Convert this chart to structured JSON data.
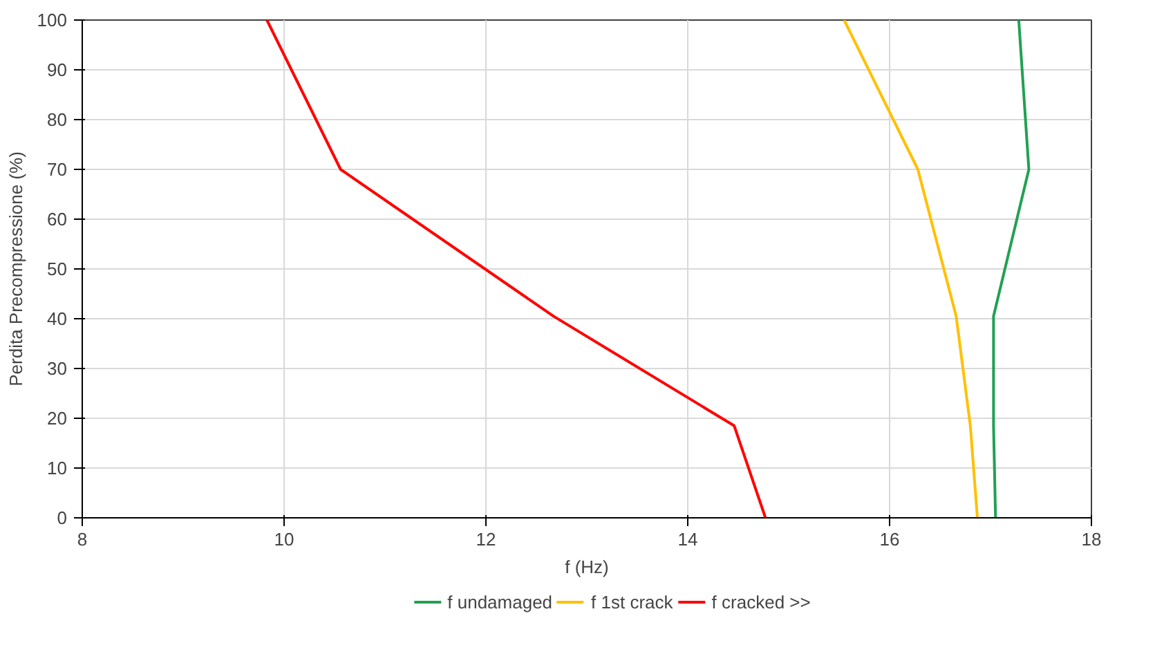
{
  "chart_data": {
    "type": "line",
    "xlabel": "f (Hz)",
    "ylabel": "Perdita Precompressione (%)",
    "xlim": [
      8,
      18
    ],
    "xticks": [
      8,
      10,
      12,
      14,
      16,
      18
    ],
    "ylim": [
      0,
      100
    ],
    "yticks": [
      0,
      10,
      20,
      30,
      40,
      50,
      60,
      70,
      80,
      90,
      100
    ],
    "grid": true,
    "legend": "bottom",
    "series": [
      {
        "name": "f undamaged",
        "color": "#21a152",
        "x": [
          17.05,
          17.03,
          17.03,
          17.38,
          17.28
        ],
        "values": [
          0,
          18.5,
          40.5,
          70,
          100
        ]
      },
      {
        "name": "f 1st crack",
        "color": "#ffc000",
        "x": [
          16.87,
          16.8,
          16.66,
          16.28,
          15.55
        ],
        "values": [
          0,
          18.5,
          40.5,
          70,
          100
        ]
      },
      {
        "name": "f cracked >>",
        "color": "#ff0000",
        "x": [
          14.77,
          14.46,
          12.67,
          10.56,
          9.83
        ],
        "values": [
          0,
          18.5,
          40.5,
          70,
          100
        ]
      }
    ]
  }
}
